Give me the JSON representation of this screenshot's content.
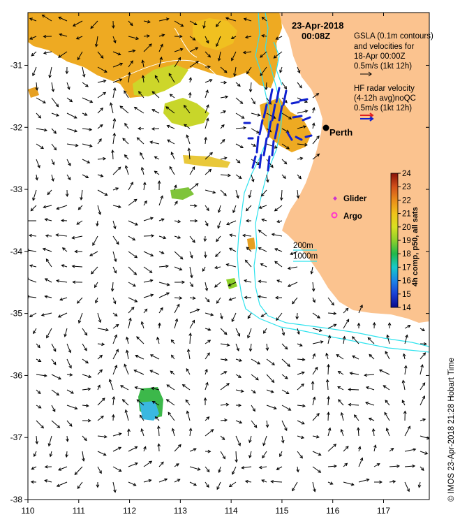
{
  "title": {
    "date": "23-Apr-2018",
    "time": "00:08Z"
  },
  "legend": {
    "gsla_lines": [
      "GSLA (0.1m contours)",
      "and velocities for",
      "18-Apr 00:00Z",
      "0.5m/s (1kt 12h)"
    ],
    "hf_lines": [
      "HF radar velocity",
      "(4-12h avg)noQC",
      "0.5m/s (1kt 12h)"
    ],
    "glider": "Glider",
    "argo": "Argo",
    "bathy_200": "200m",
    "bathy_1000": "1000m"
  },
  "places": [
    {
      "name": "Perth",
      "lon": 115.86,
      "lat": -31.95
    }
  ],
  "colorbar": {
    "title": "4h comp, p50, all sats",
    "min": 14,
    "max": 24,
    "ticks": [
      14,
      15,
      16,
      17,
      18,
      19,
      20,
      21,
      22,
      23,
      24
    ]
  },
  "axes": {
    "lon_range": [
      110,
      117.9
    ],
    "lat_range": [
      -38,
      -30.15
    ],
    "lon_ticks": [
      110,
      111,
      112,
      113,
      114,
      115,
      116,
      117
    ],
    "lat_ticks": [
      -31,
      -32,
      -33,
      -34,
      -35,
      -36,
      -37,
      -38
    ]
  },
  "credit": "© IMOS 23-Apr-2018 21:28 Hobart Time",
  "colors": {
    "land": "#fbc38f",
    "bathy": "#2ee3ee",
    "hf_arrows": "#1020d0",
    "glider": "#cc33cc",
    "argo": "#ff33cc"
  }
}
